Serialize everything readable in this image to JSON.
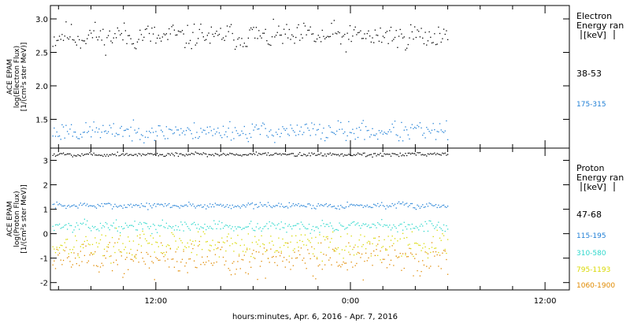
{
  "chart_data": [
    {
      "type": "scatter",
      "panel": "electron",
      "ylabel_lines": [
        "ACE EPAM",
        "log(Electron Flux)",
        "[1/(cm²s ster MeV)]"
      ],
      "ylim": [
        1.07,
        3.2
      ],
      "yticks": [
        1.5,
        2.0,
        2.5,
        3.0
      ],
      "yticklabels": [
        "1.5",
        "2.0",
        "2.5",
        "3.0"
      ],
      "legend_title": [
        "Electron",
        "Energy ran",
        "[keV]"
      ],
      "series": [
        {
          "name": "38-53",
          "color": "#000000",
          "mean": 2.74,
          "spread": 0.09,
          "noise_seed": 11
        },
        {
          "name": "175-315",
          "color": "#1f7fd6",
          "mean": 1.32,
          "spread": 0.07,
          "noise_seed": 23
        }
      ]
    },
    {
      "type": "scatter",
      "panel": "proton",
      "ylabel_lines": [
        "ACE EPAM",
        "log(Proton Flux)",
        "[1/(cm²s ster MeV)]"
      ],
      "ylim": [
        -2.3,
        3.5
      ],
      "yticks": [
        -2,
        -1,
        0,
        1,
        2,
        3
      ],
      "yticklabels": [
        "-2",
        "-1",
        "0",
        "1",
        "2",
        "3"
      ],
      "legend_title": [
        "Proton",
        "Energy ran",
        "[keV]"
      ],
      "series": [
        {
          "name": "47-68",
          "color": "#000000",
          "mean": 3.24,
          "spread": 0.04,
          "noise_seed": 5
        },
        {
          "name": "115-195",
          "color": "#1f7fd6",
          "mean": 1.15,
          "spread": 0.06,
          "noise_seed": 7
        },
        {
          "name": "310-580",
          "color": "#2fd8cc",
          "mean": 0.3,
          "spread": 0.1,
          "noise_seed": 13
        },
        {
          "name": "795-1193",
          "color": "#d9d900",
          "mean": -0.45,
          "spread": 0.25,
          "noise_seed": 17
        },
        {
          "name": "1060-1900",
          "color": "#e08a00",
          "mean": -1.0,
          "spread": 0.35,
          "noise_seed": 19
        }
      ]
    }
  ],
  "x_axis": {
    "title": "hours:minutes, Apr.  6, 2016 - Apr.  7, 2016",
    "range_hours": [
      5.5,
      37.5
    ],
    "data_end_hour": 30.0,
    "ticks_hours": [
      12,
      24,
      36
    ],
    "tick_labels": [
      "12:00",
      "0:00",
      "12:00"
    ]
  }
}
